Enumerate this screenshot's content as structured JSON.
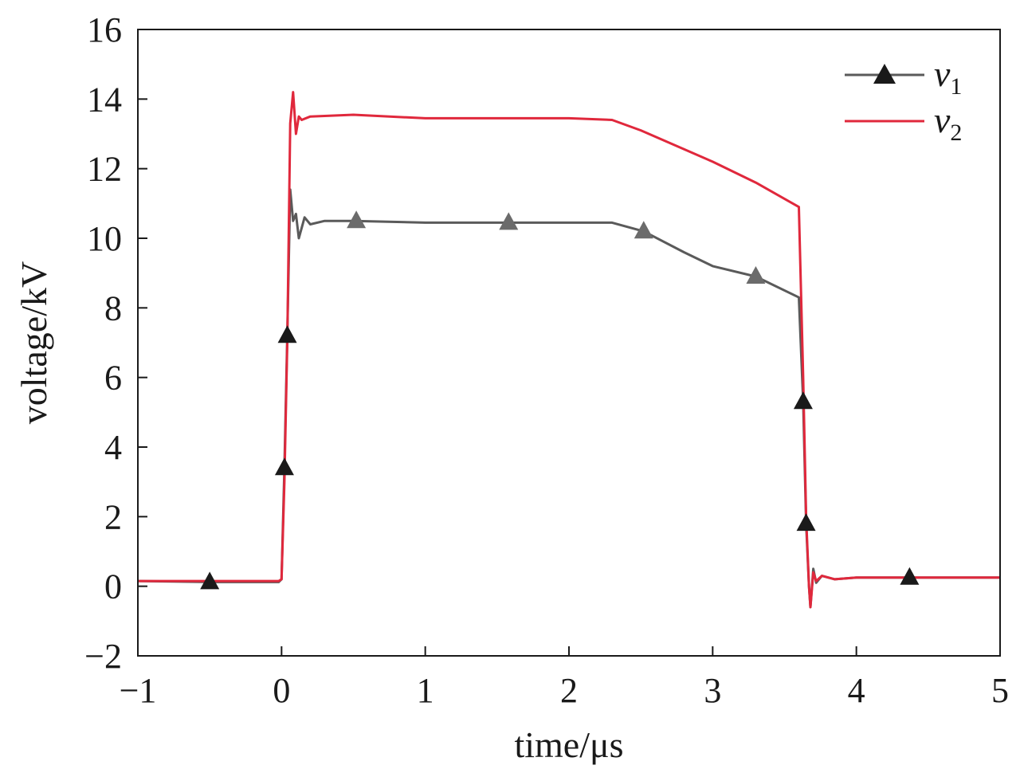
{
  "chart_data": {
    "type": "line",
    "xlabel": "time/μs",
    "ylabel": "voltage/kV",
    "xlim": [
      -1,
      5
    ],
    "ylim": [
      -2,
      16
    ],
    "xticks": [
      -1,
      0,
      1,
      2,
      3,
      4,
      5
    ],
    "yticks": [
      -2,
      0,
      2,
      4,
      6,
      8,
      10,
      12,
      14,
      16
    ],
    "xtick_labels": [
      "−1",
      "0",
      "1",
      "2",
      "3",
      "4",
      "5"
    ],
    "ytick_labels": [
      "−2",
      "0",
      "2",
      "4",
      "6",
      "8",
      "10",
      "12",
      "14",
      "16"
    ],
    "grid": false,
    "legend_position": "top-right",
    "series": [
      {
        "name": "v1",
        "legend_main": "v",
        "legend_sub": "1",
        "color": "#5a5a5a",
        "marker": "triangle",
        "x": [
          -1.0,
          -0.5,
          -0.02,
          0.0,
          0.02,
          0.04,
          0.06,
          0.08,
          0.1,
          0.12,
          0.16,
          0.2,
          0.3,
          0.5,
          1.0,
          1.58,
          2.0,
          2.3,
          2.52,
          2.8,
          3.0,
          3.3,
          3.6,
          3.63,
          3.65,
          3.67,
          3.68,
          3.7,
          3.72,
          3.76,
          3.85,
          4.0,
          4.37,
          5.0
        ],
        "y": [
          0.15,
          0.12,
          0.12,
          0.2,
          3.4,
          7.2,
          11.4,
          10.5,
          10.7,
          10.0,
          10.6,
          10.4,
          10.5,
          10.5,
          10.45,
          10.45,
          10.45,
          10.45,
          10.2,
          9.6,
          9.2,
          8.9,
          8.3,
          5.3,
          1.8,
          0.0,
          -0.6,
          0.5,
          0.1,
          0.3,
          0.2,
          0.25,
          0.25,
          0.25
        ]
      },
      {
        "name": "v2",
        "legend_main": "v",
        "legend_sub": "2",
        "color": "#e0283c",
        "marker": "none",
        "x": [
          -1.0,
          -0.5,
          -0.02,
          0.0,
          0.02,
          0.04,
          0.06,
          0.08,
          0.1,
          0.12,
          0.14,
          0.2,
          0.5,
          1.0,
          1.5,
          2.0,
          2.3,
          2.5,
          3.0,
          3.3,
          3.6,
          3.63,
          3.65,
          3.67,
          3.68,
          3.7,
          3.72,
          3.76,
          3.85,
          4.0,
          4.4,
          5.0
        ],
        "y": [
          0.15,
          0.15,
          0.15,
          0.2,
          3.0,
          7.0,
          13.3,
          14.2,
          13.0,
          13.5,
          13.4,
          13.5,
          13.55,
          13.45,
          13.45,
          13.45,
          13.4,
          13.1,
          12.2,
          11.6,
          10.9,
          6.0,
          2.0,
          0.0,
          -0.6,
          0.4,
          0.15,
          0.3,
          0.2,
          0.25,
          0.25,
          0.25
        ]
      }
    ]
  }
}
